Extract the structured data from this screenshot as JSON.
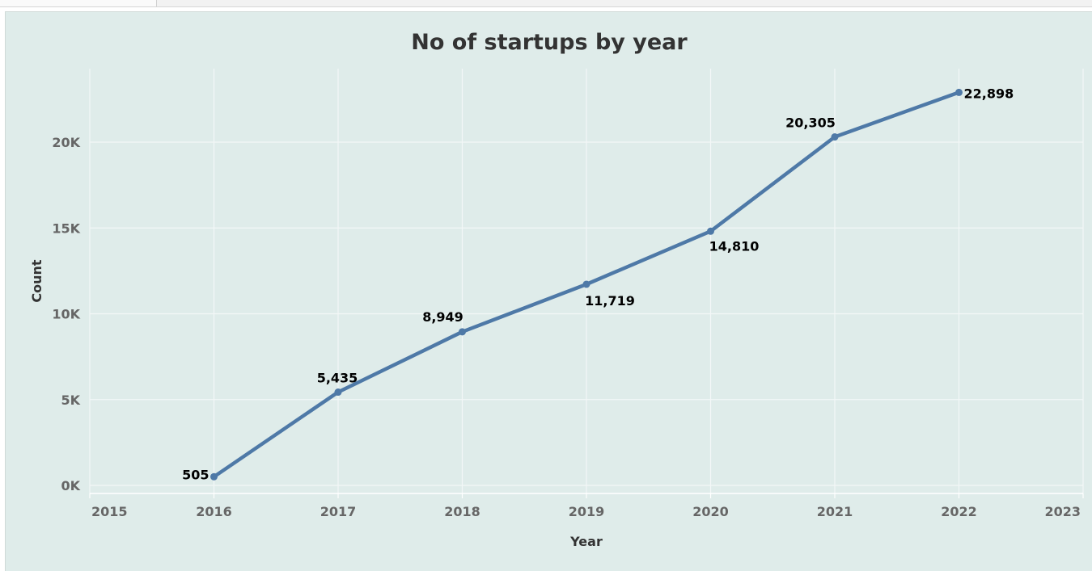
{
  "chart_data": {
    "type": "line",
    "title": "No of startups by year",
    "xlabel": "Year",
    "ylabel": "Count",
    "x_ticks": [
      "2015",
      "2016",
      "2017",
      "2018",
      "2019",
      "2020",
      "2021",
      "2022",
      "2023"
    ],
    "y_ticks": [
      "0K",
      "5K",
      "10K",
      "15K",
      "20K"
    ],
    "xlim": [
      2015,
      2023
    ],
    "ylim": [
      0,
      24000
    ],
    "grid": true,
    "line_color": "#4e79a7",
    "series": [
      {
        "x": [
          2016,
          2017,
          2018,
          2019,
          2020,
          2021,
          2022
        ],
        "values": [
          505,
          5435,
          8949,
          11719,
          14810,
          20305,
          22898
        ],
        "labels": [
          "505",
          "5,435",
          "8,949",
          "11,719",
          "14,810",
          "20,305",
          "22,898"
        ]
      }
    ]
  }
}
